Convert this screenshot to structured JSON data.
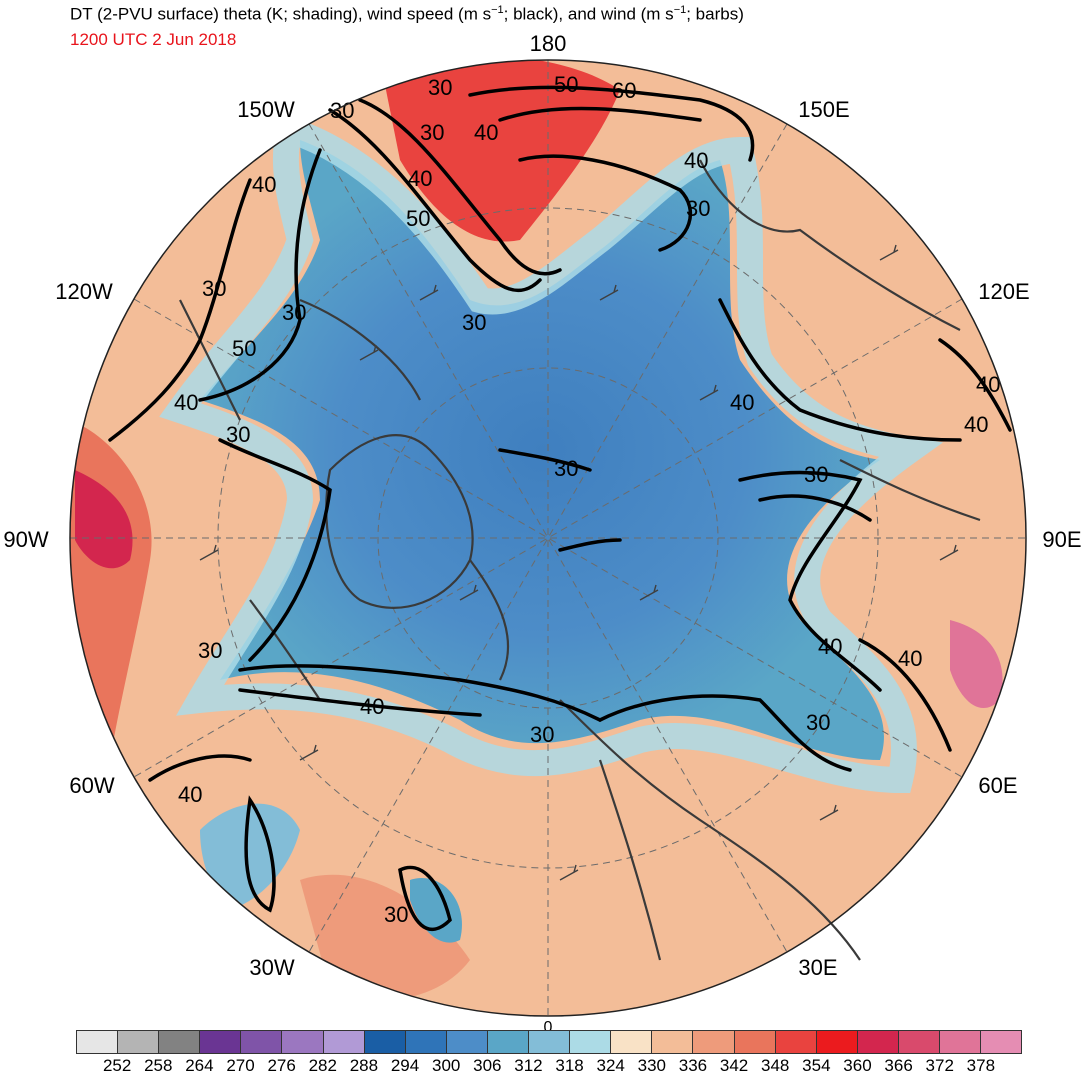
{
  "header": {
    "title_main": "DT (2-PVU surface) theta (K; shading), wind speed (m s",
    "title_sup1": "−1",
    "title_mid": "; black), and wind (m s",
    "title_sup2": "−1",
    "title_end": "; barbs)",
    "valid_time": "1200 UTC 2 Jun 2018"
  },
  "map": {
    "projection": "north-polar-stereographic",
    "longitude_labels": [
      "180",
      "150E",
      "120E",
      "90E",
      "60E",
      "30E",
      "0",
      "30W",
      "60W",
      "90W",
      "120W",
      "150W"
    ],
    "contour_labels": [
      "30",
      "30",
      "30",
      "30",
      "30",
      "30",
      "30",
      "30",
      "30",
      "30",
      "30",
      "30",
      "30",
      "30",
      "40",
      "40",
      "40",
      "40",
      "40",
      "40",
      "40",
      "40",
      "40",
      "40",
      "40",
      "40",
      "50",
      "50",
      "50",
      "60"
    ],
    "colors": {
      "coastline": "#3a3a3a",
      "contour": "#000000",
      "barb": "#3f3f3f",
      "graticule": "#6b6b6b"
    }
  },
  "colorbar": {
    "labels": [
      "252",
      "258",
      "264",
      "270",
      "276",
      "282",
      "288",
      "294",
      "300",
      "306",
      "312",
      "318",
      "324",
      "330",
      "336",
      "342",
      "348",
      "354",
      "360",
      "366",
      "372",
      "378"
    ],
    "colors": [
      "#e6e6e6",
      "#b4b4b4",
      "#828282",
      "#6a3593",
      "#7f54a8",
      "#9b77c0",
      "#b19ad6",
      "#1a5ea5",
      "#2f74b8",
      "#4d8dc8",
      "#5aa6c7",
      "#83bdd7",
      "#acdbe6",
      "#f9e2c6",
      "#f3bd98",
      "#ee9b7b",
      "#e9755c",
      "#e9433f",
      "#eb1b1e",
      "#d3264e",
      "#d94a6c",
      "#e07498",
      "#e58db3"
    ]
  }
}
